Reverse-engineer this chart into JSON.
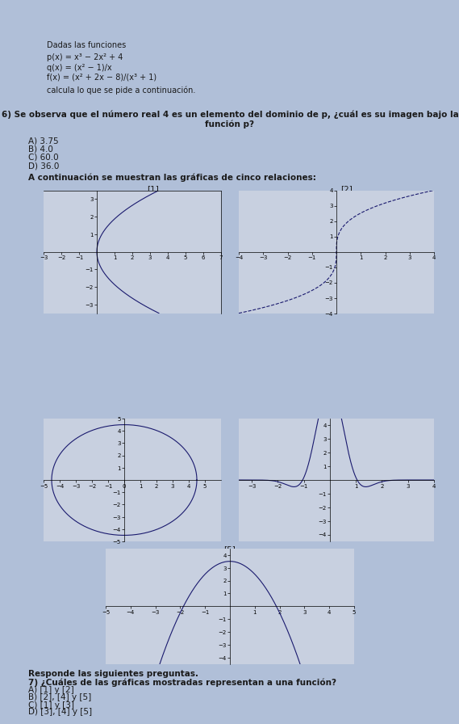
{
  "title_box_text": [
    "Dadas las funciones",
    "p(x) = x³ − 2x² + 4",
    "q(x) = (x² − 1)/x",
    "f(x) = (x² + 2x − 8)/(x³ + 1)",
    "calcula lo que se pide a continuación."
  ],
  "q6_text": "6) Se observa que el número real 4 es un elemento del dominio de p, ¿cuál es su imagen bajo la\nfunción p?",
  "q6_options": [
    "A) 3.75",
    "B) 4.0",
    "C) 60.0",
    "D) 36.0"
  ],
  "q7_intro": "A continuación se muestran las gráficas de cinco relaciones:",
  "q7_text": "Responde las siguientes preguntas.\n7) ¿Cuáles de las gráficas mostradas representan a una función?",
  "q7_options": [
    "A) [1] y [2]",
    "B) [2], [4] y [5]",
    "C) [1] y [3]",
    "D) [3], [4] y [5]"
  ],
  "bg_color": "#b0bfd8",
  "box_bg": "#d8dce8",
  "plot_bg": "#c8d0e0",
  "curve_color": "#1a1a6e",
  "text_color": "#1a1a1a"
}
